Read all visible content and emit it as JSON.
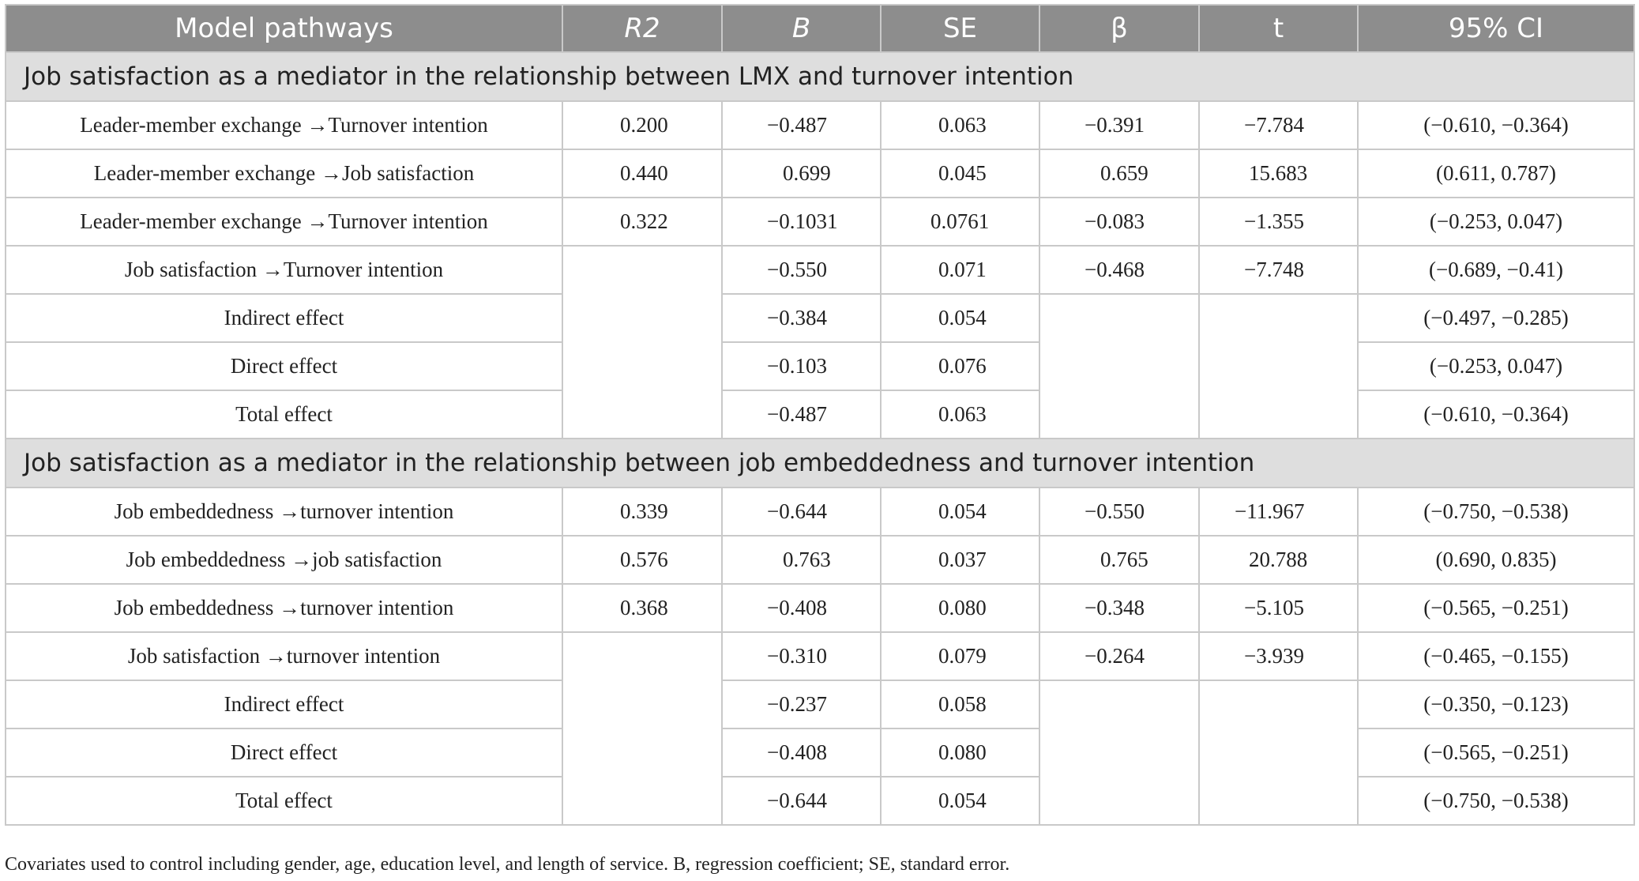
{
  "header": {
    "col_pathway": "Model pathways",
    "col_r2": "R2",
    "col_b": "B",
    "col_se": "SE",
    "col_beta": "β",
    "col_t": "t",
    "col_ci": "95% CI"
  },
  "sections": [
    {
      "title": "Job satisfaction as a mediator in the relationship between LMX and turnover intention",
      "rows": [
        {
          "pathway": "Leader-member exchange →Turnover intention",
          "r2": "0.200",
          "b": "−0.487",
          "se": "0.063",
          "beta": "−0.391",
          "t": "−7.784",
          "ci": "(−0.610, −0.364)"
        },
        {
          "pathway": "Leader-member exchange →Job satisfaction",
          "r2": "0.440",
          "b": "0.699",
          "se": "0.045",
          "beta": "0.659",
          "t": "15.683",
          "ci": "(0.611, 0.787)"
        },
        {
          "pathway": "Leader-member exchange →Turnover intention",
          "r2": "0.322",
          "b": "−0.1031",
          "se": "0.0761",
          "beta": "−0.083",
          "t": "−1.355",
          "ci": "(−0.253, 0.047)"
        },
        {
          "pathway": "Job satisfaction →Turnover intention",
          "b": "−0.550",
          "se": "0.071",
          "beta": "−0.468",
          "t": "−7.748",
          "ci": "(−0.689, −0.41)"
        },
        {
          "pathway": "Indirect effect",
          "b": "−0.384",
          "se": "0.054",
          "ci": "(−0.497, −0.285)"
        },
        {
          "pathway": "Direct effect",
          "b": "−0.103",
          "se": "0.076",
          "ci": "(−0.253, 0.047)"
        },
        {
          "pathway": "Total effect",
          "b": "−0.487",
          "se": "0.063",
          "ci": "(−0.610, −0.364)"
        }
      ]
    },
    {
      "title": "Job satisfaction as a mediator in the relationship between job embeddedness and turnover intention",
      "rows": [
        {
          "pathway": "Job embeddedness →turnover intention",
          "r2": "0.339",
          "b": "−0.644",
          "se": "0.054",
          "beta": "−0.550",
          "t": "−11.967",
          "ci": "(−0.750, −0.538)"
        },
        {
          "pathway": "Job embeddedness →job satisfaction",
          "r2": "0.576",
          "b": "0.763",
          "se": "0.037",
          "beta": "0.765",
          "t": "20.788",
          "ci": "(0.690, 0.835)"
        },
        {
          "pathway": "Job embeddedness →turnover intention",
          "r2": "0.368",
          "b": "−0.408",
          "se": "0.080",
          "beta": "−0.348",
          "t": "−5.105",
          "ci": "(−0.565, −0.251)"
        },
        {
          "pathway": "Job satisfaction →turnover intention",
          "b": "−0.310",
          "se": "0.079",
          "beta": "−0.264",
          "t": "−3.939",
          "ci": "(−0.465, −0.155)"
        },
        {
          "pathway": "Indirect effect",
          "b": "−0.237",
          "se": "0.058",
          "ci": "(−0.350, −0.123)"
        },
        {
          "pathway": "Direct effect",
          "b": "−0.408",
          "se": "0.080",
          "ci": "(−0.565, −0.251)"
        },
        {
          "pathway": "Total effect",
          "b": "−0.644",
          "se": "0.054",
          "ci": "(−0.750, −0.538)"
        }
      ]
    }
  ],
  "footnote": "Covariates used to control including gender, age, education level, and length of service. B, regression coefficient; SE, standard error."
}
